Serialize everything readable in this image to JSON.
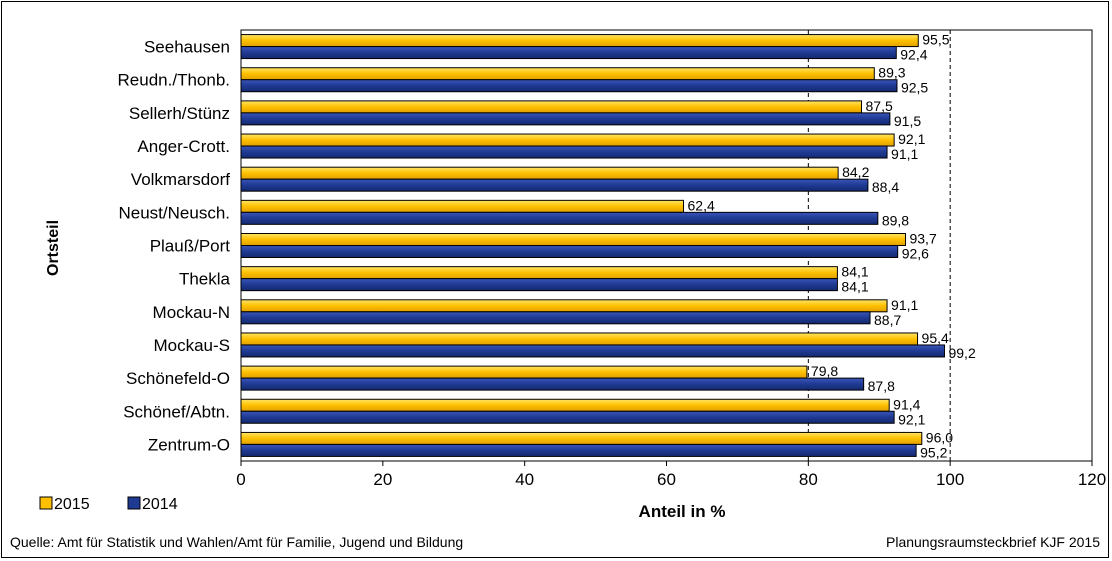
{
  "chart_data": {
    "type": "bar",
    "orientation": "horizontal",
    "categories": [
      "Seehausen",
      "Reudn./Thonb.",
      "Sellerh/Stünz",
      "Anger-Crott.",
      "Volkmarsdorf",
      "Neust/Neusch.",
      "Plauß/Port",
      "Thekla",
      "Mockau-N",
      "Mockau-S",
      "Schönefeld-O",
      "Schönef/Abtn.",
      "Zentrum-O"
    ],
    "series": [
      {
        "name": "2015",
        "color": "#FFC000",
        "values": [
          95.5,
          89.3,
          87.5,
          92.1,
          84.2,
          62.4,
          93.7,
          84.1,
          91.1,
          95.4,
          79.8,
          91.4,
          96.0
        ],
        "labels": [
          "95,5",
          "89,3",
          "87,5",
          "92,1",
          "84,2",
          "62,4",
          "93,7",
          "84,1",
          "91,1",
          "95,4",
          "79,8",
          "91,4",
          "96,0"
        ]
      },
      {
        "name": "2014",
        "color": "#1F3A93",
        "values": [
          92.4,
          92.5,
          91.5,
          91.1,
          88.4,
          89.8,
          92.6,
          84.1,
          88.7,
          99.2,
          87.8,
          92.1,
          95.2
        ],
        "labels": [
          "92,4",
          "92,5",
          "91,5",
          "91,1",
          "88,4",
          "89,8",
          "92,6",
          "84,1",
          "88,7",
          "99,2",
          "87,8",
          "92,1",
          "95,2"
        ]
      }
    ],
    "xlabel": "Anteil in %",
    "ylabel": "Ortsteil",
    "xlim": [
      0,
      120
    ],
    "xticks": [
      "0",
      "20",
      "40",
      "60",
      "80",
      "100",
      "120"
    ],
    "grid": "dashed lines at 80 and 100",
    "legend": "bottom-left"
  },
  "footer": {
    "source": "Quelle: Amt für Statistik und Wahlen/Amt für Familie,  Jugend und Bildung",
    "credit": "Planungsraumsteckbrief KJF 2015"
  }
}
